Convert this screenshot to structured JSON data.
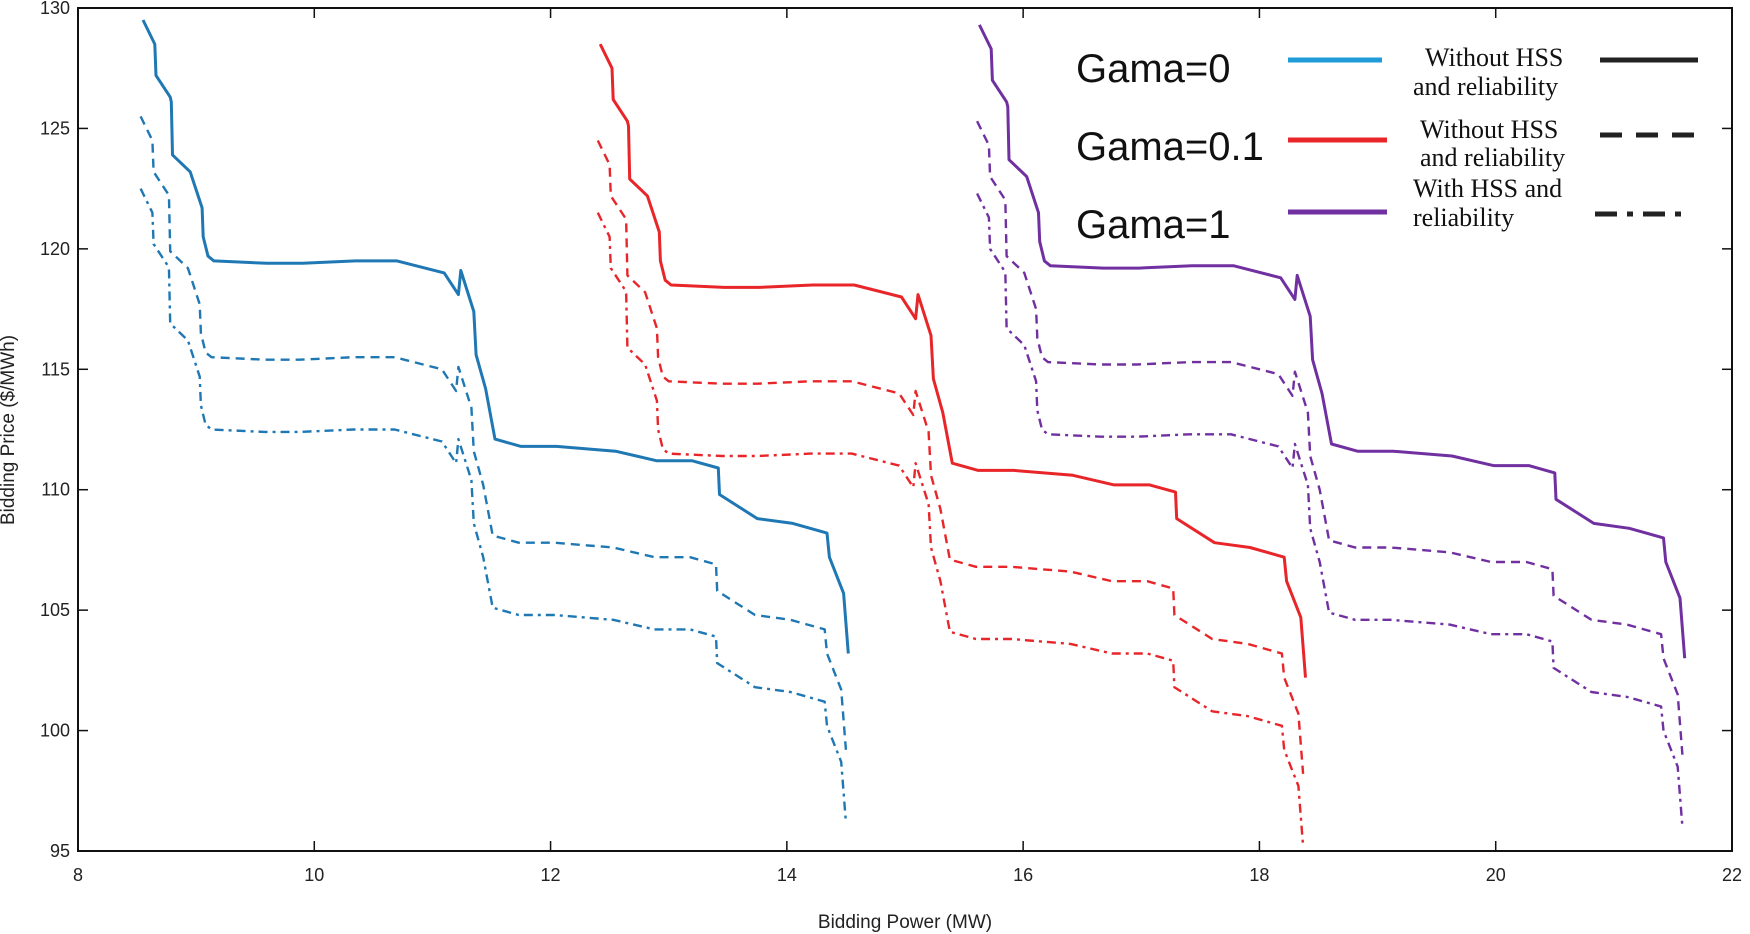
{
  "chart_data": {
    "type": "line",
    "title": "",
    "xlabel": "Bidding Power (MW)",
    "ylabel": "Bidding Price ($/MWh)",
    "xlim": [
      8,
      22
    ],
    "ylim": [
      95,
      130
    ],
    "xticks": [
      "8",
      "10",
      "12",
      "14",
      "16",
      "18",
      "20",
      "22"
    ],
    "yticks": [
      "95",
      "100",
      "105",
      "110",
      "115",
      "120",
      "125",
      "130"
    ],
    "grid": false,
    "legend_position": "top-right",
    "legend": {
      "gama_labels": [
        {
          "text": "Gama=0",
          "color": "#1f9bd8"
        },
        {
          "text": "Gama=0.1",
          "color": "#e8262a"
        },
        {
          "text": "Gama=1",
          "color": "#7030a0"
        }
      ],
      "style_labels": [
        {
          "line1": "Without HSS",
          "line2": "and reliability",
          "dash": "solid"
        },
        {
          "line1": "Without HSS",
          "line2": "and reliability",
          "dash": "dashed"
        },
        {
          "line1": "With HSS and",
          "line2": "reliability",
          "dash": "dashdot"
        }
      ]
    },
    "base_curve": [
      [
        8.55,
        129.5
      ],
      [
        8.65,
        128.5
      ],
      [
        8.66,
        127.2
      ],
      [
        8.78,
        126.3
      ],
      [
        8.79,
        126.1
      ],
      [
        8.8,
        123.9
      ],
      [
        8.95,
        123.2
      ],
      [
        9.05,
        121.7
      ],
      [
        9.06,
        120.5
      ],
      [
        9.1,
        119.7
      ],
      [
        9.15,
        119.5
      ],
      [
        9.6,
        119.4
      ],
      [
        9.9,
        119.4
      ],
      [
        10.35,
        119.5
      ],
      [
        10.7,
        119.5
      ],
      [
        11.1,
        119.0
      ],
      [
        11.22,
        118.1
      ],
      [
        11.24,
        119.1
      ],
      [
        11.35,
        117.4
      ],
      [
        11.37,
        115.6
      ],
      [
        11.45,
        114.2
      ],
      [
        11.53,
        112.1
      ],
      [
        11.75,
        111.8
      ],
      [
        12.05,
        111.8
      ],
      [
        12.55,
        111.6
      ],
      [
        12.9,
        111.2
      ],
      [
        13.2,
        111.2
      ],
      [
        13.42,
        110.9
      ],
      [
        13.43,
        109.8
      ],
      [
        13.75,
        108.8
      ],
      [
        14.05,
        108.6
      ],
      [
        14.34,
        108.2
      ],
      [
        14.36,
        107.2
      ],
      [
        14.48,
        105.7
      ],
      [
        14.52,
        103.2
      ]
    ],
    "series": [
      {
        "gama": "Gama=0",
        "style": "solid",
        "color": "#1f78b4",
        "x_offset": 0,
        "y_offset": 0
      },
      {
        "gama": "Gama=0",
        "style": "dashed",
        "color": "#1f78b4",
        "x_offset": -0.02,
        "y_offset": -4.0
      },
      {
        "gama": "Gama=0",
        "style": "dashdot",
        "color": "#1f78b4",
        "x_offset": -0.02,
        "y_offset": -7.0
      },
      {
        "gama": "Gama=0.1",
        "style": "solid",
        "color": "#e8262a",
        "x_offset": 3.87,
        "y_offset": -1.0
      },
      {
        "gama": "Gama=0.1",
        "style": "dashed",
        "color": "#e8262a",
        "x_offset": 3.85,
        "y_offset": -5.0
      },
      {
        "gama": "Gama=0.1",
        "style": "dashdot",
        "color": "#e8262a",
        "x_offset": 3.85,
        "y_offset": -8.0
      },
      {
        "gama": "Gama=1",
        "style": "solid",
        "color": "#7030a0",
        "x_offset": 7.08,
        "y_offset": -0.2
      },
      {
        "gama": "Gama=1",
        "style": "dashed",
        "color": "#7030a0",
        "x_offset": 7.06,
        "y_offset": -4.2
      },
      {
        "gama": "Gama=1",
        "style": "dashdot",
        "color": "#7030a0",
        "x_offset": 7.06,
        "y_offset": -7.2
      }
    ]
  }
}
